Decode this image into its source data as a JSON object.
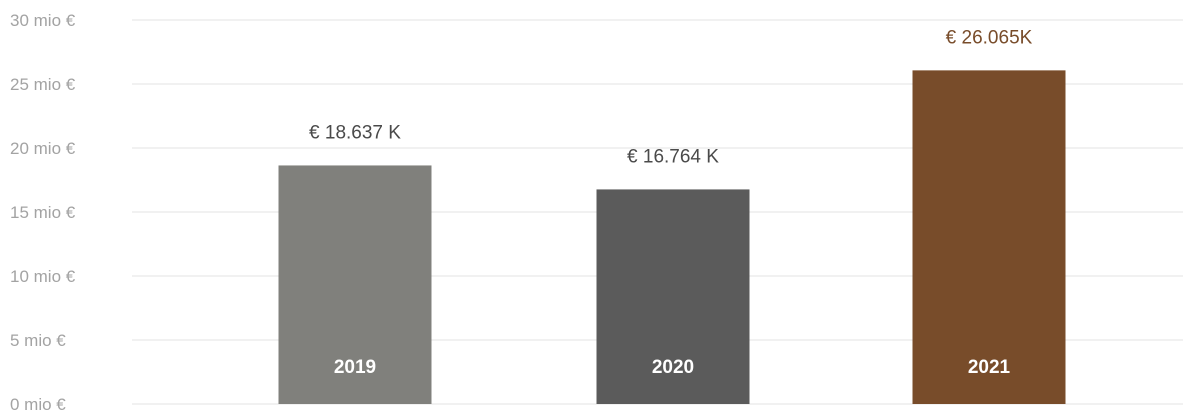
{
  "chart_data": {
    "type": "bar",
    "categories": [
      "2019",
      "2020",
      "2021"
    ],
    "values": [
      18.637,
      16.764,
      26.065
    ],
    "value_labels": [
      "€ 18.637 K",
      "€ 16.764 K",
      "€ 26.065K"
    ],
    "y_tick_values": [
      0,
      5,
      10,
      15,
      20,
      25,
      30
    ],
    "y_tick_labels": [
      "0 mio €",
      "5 mio €",
      "10 mio €",
      "15 mio €",
      "20 mio €",
      "25 mio €",
      "30 mio €"
    ],
    "ylim": [
      0,
      30
    ],
    "grid": true,
    "title": "",
    "xlabel": "",
    "ylabel": "",
    "colors": [
      "#80807c",
      "#5b5b5b",
      "#784c2a"
    ],
    "value_label_colors": [
      "#4a4a4a",
      "#4a4a4a",
      "#784c2a"
    ],
    "category_label_color": "#ffffff"
  }
}
